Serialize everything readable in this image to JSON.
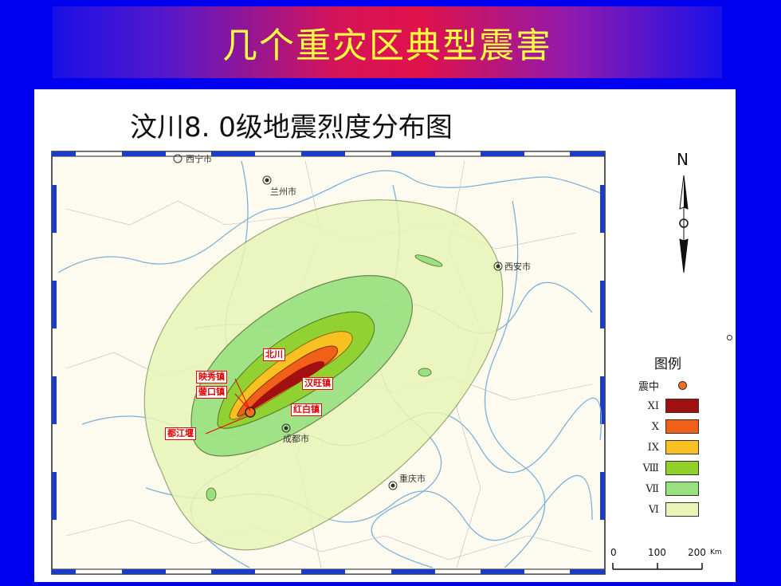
{
  "slide": {
    "title": "几个重灾区典型震害"
  },
  "map": {
    "title": "汶川8. 0级地震烈度分布图",
    "north_label": "N",
    "cities": {
      "lanzhou": "兰州市",
      "xian": "西安市",
      "chengdu": "成都市",
      "chongqing": "重庆市",
      "xining": "西宁市"
    },
    "towns": {
      "beichuan": "北川",
      "yingxiu": "映秀镇",
      "xuankou": "蓥口镇",
      "dujiangyan": "都江堰",
      "hanwang": "汉旺镇",
      "hongbai": "红白镇"
    },
    "legend": {
      "title": "图例",
      "epicenter": "震中",
      "items": [
        {
          "label": "XI",
          "color": "#a01010"
        },
        {
          "label": "X",
          "color": "#f06018"
        },
        {
          "label": "IX",
          "color": "#f8c020"
        },
        {
          "label": "Ⅷ",
          "color": "#90d028"
        },
        {
          "label": "Ⅶ",
          "color": "#98e080"
        },
        {
          "label": "Ⅵ",
          "color": "#e8f4b8"
        }
      ]
    },
    "scale": {
      "zero": "0",
      "mid": "100",
      "max": "200",
      "unit": "Km"
    }
  }
}
